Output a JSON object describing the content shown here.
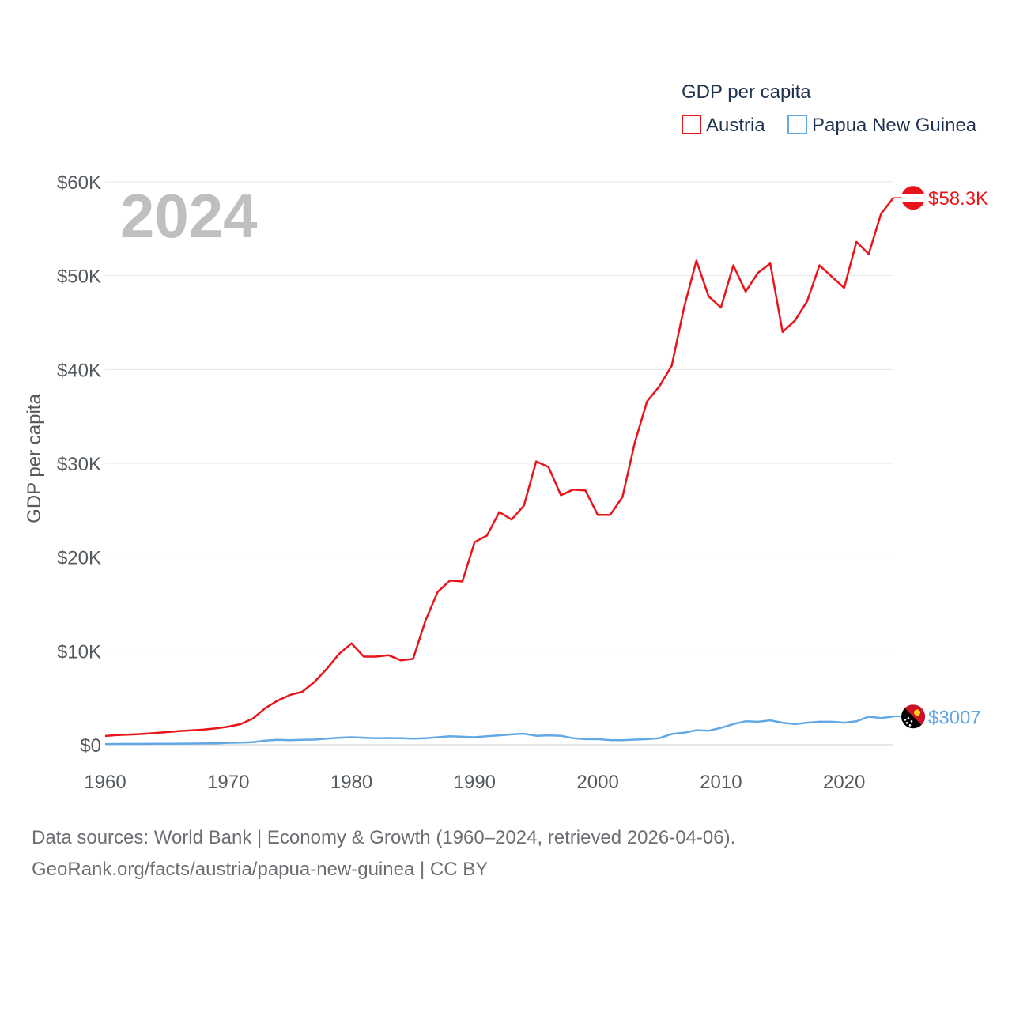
{
  "chart_data": {
    "type": "line",
    "year_label": "2024",
    "ylabel": "GDP per capita",
    "legend_title": "GDP per capita",
    "xlim": [
      1960,
      2024
    ],
    "ylim": [
      0,
      60000
    ],
    "x_ticks": [
      1960,
      1970,
      1980,
      1990,
      2000,
      2010,
      2020
    ],
    "y_ticks": [
      {
        "value": 0,
        "label": "$0"
      },
      {
        "value": 10000,
        "label": "$10K"
      },
      {
        "value": 20000,
        "label": "$20K"
      },
      {
        "value": 30000,
        "label": "$30K"
      },
      {
        "value": 40000,
        "label": "$40K"
      },
      {
        "value": 50000,
        "label": "$50K"
      },
      {
        "value": 60000,
        "label": "$60K"
      }
    ],
    "series": [
      {
        "name": "Austria",
        "color": "#e8141a",
        "end_label": "$58.3K",
        "flag": "austria-flag",
        "x_start": 1960,
        "values": [
          935,
          1030,
          1090,
          1150,
          1250,
          1350,
          1450,
          1540,
          1620,
          1750,
          1930,
          2200,
          2800,
          3900,
          4700,
          5300,
          5650,
          6700,
          8100,
          9700,
          10800,
          9400,
          9400,
          9550,
          9000,
          9150,
          13200,
          16300,
          17500,
          17400,
          21600,
          22300,
          24800,
          24000,
          25500,
          30200,
          29600,
          26600,
          27200,
          27100,
          24500,
          24500,
          26400,
          32200,
          36600,
          38200,
          40400,
          46600,
          51600,
          47800,
          46600,
          51100,
          48300,
          50300,
          51300,
          44000,
          45200,
          47300,
          51100,
          49900,
          48700,
          53600,
          52300,
          56600,
          58300
        ]
      },
      {
        "name": "Papua New Guinea",
        "color": "#62a8e5",
        "end_label": "$3007",
        "flag": "papua-new-guinea-flag",
        "x_start": 1960,
        "values": [
          80,
          85,
          90,
          95,
          100,
          110,
          120,
          130,
          140,
          150,
          200,
          230,
          280,
          450,
          520,
          480,
          520,
          550,
          650,
          750,
          800,
          750,
          700,
          720,
          700,
          650,
          700,
          800,
          900,
          850,
          800,
          900,
          1000,
          1100,
          1180,
          950,
          1000,
          950,
          700,
          600,
          600,
          500,
          480,
          550,
          600,
          700,
          1150,
          1280,
          1550,
          1500,
          1800,
          2200,
          2500,
          2450,
          2600,
          2350,
          2200,
          2350,
          2450,
          2450,
          2350,
          2500,
          3000,
          2850,
          3007
        ]
      }
    ]
  },
  "footer": {
    "line1": "Data sources: World Bank | Economy & Growth (1960–2024, retrieved 2026-04-06).",
    "line2": "GeoRank.org/facts/austria/papua-new-guinea | CC BY"
  }
}
